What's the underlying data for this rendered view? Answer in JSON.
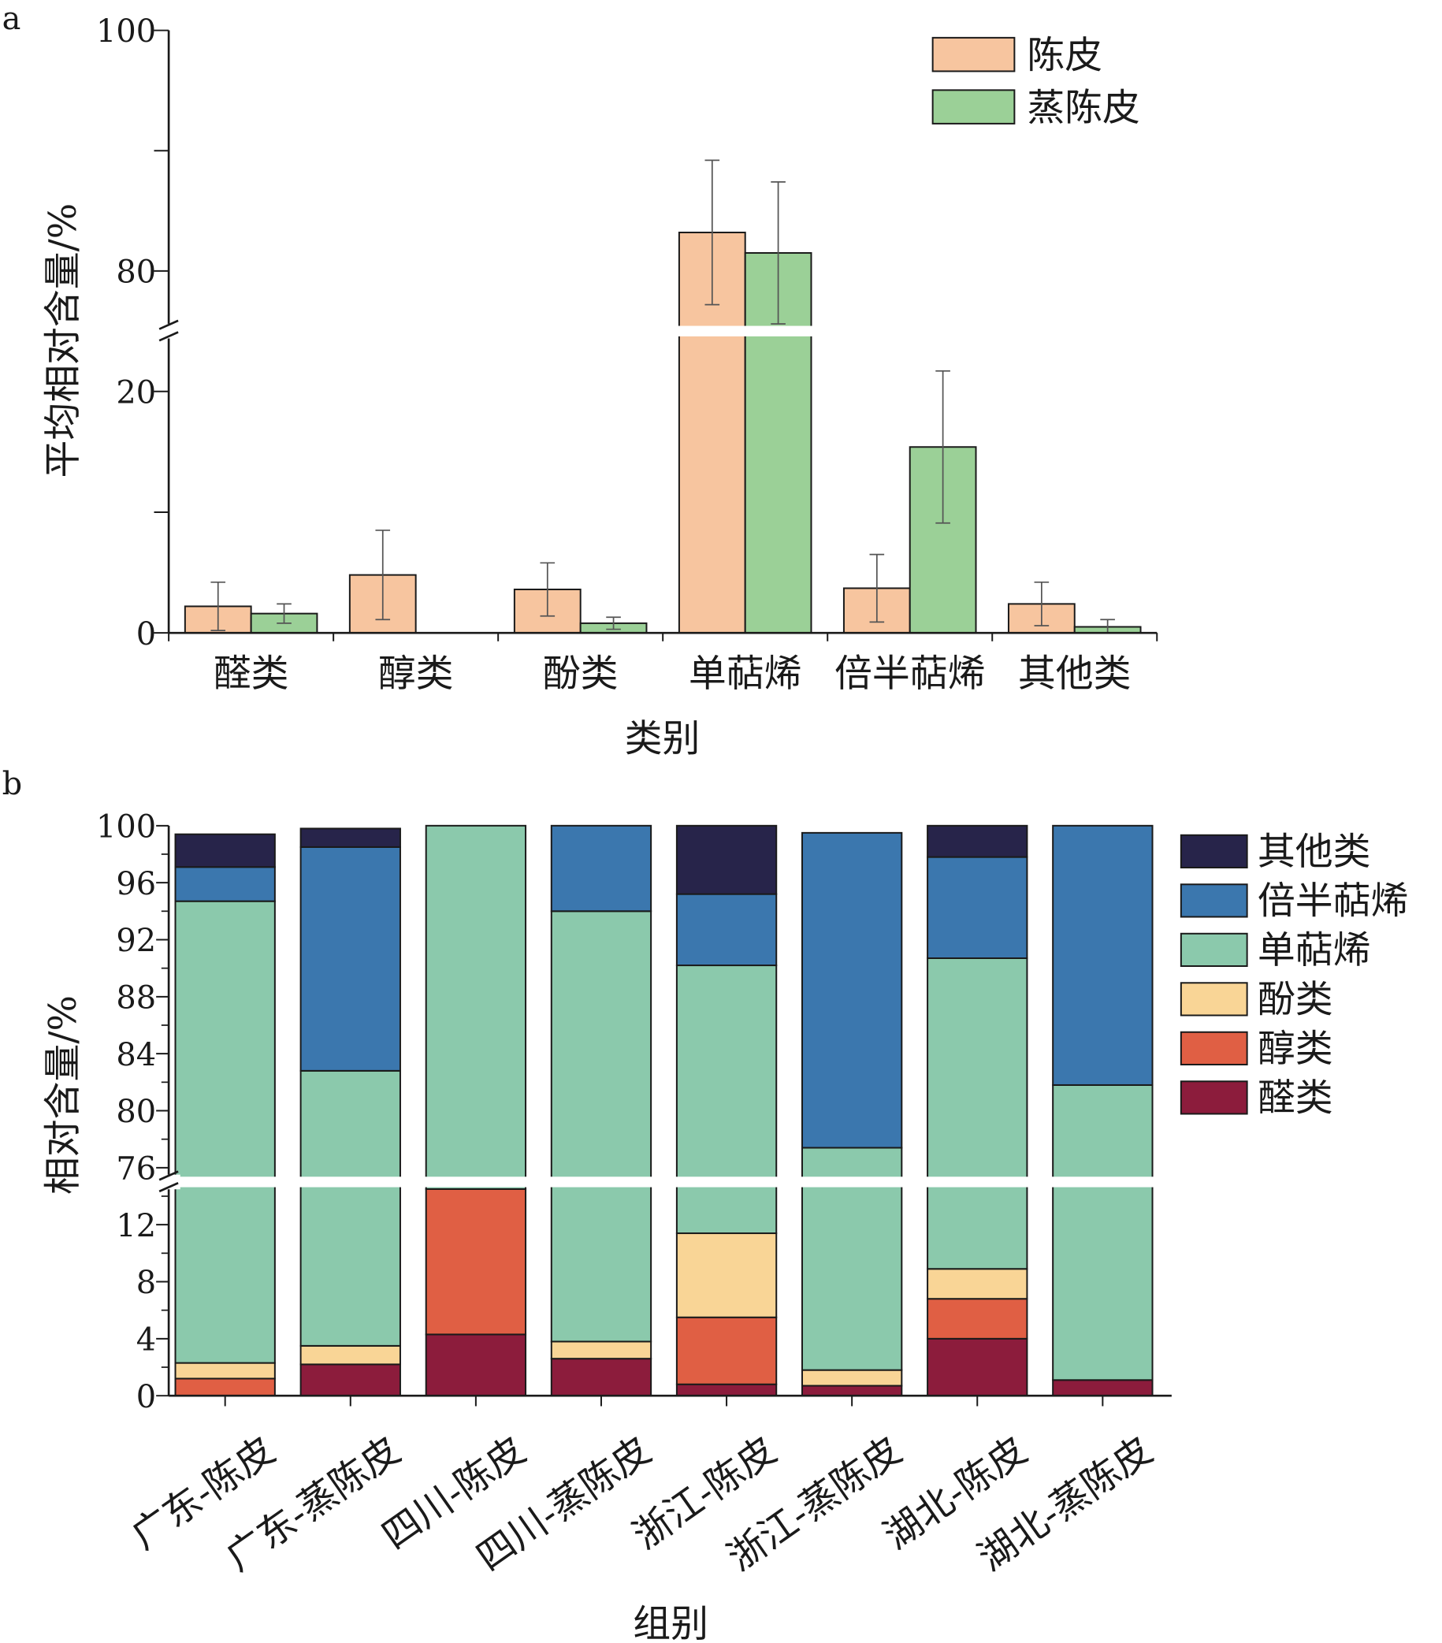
{
  "colors": {
    "chenpi": "#f7c59f",
    "zhengchenpi": "#9bd097",
    "other": "#27244a",
    "sesqui": "#3b77ae",
    "mono": "#8bc9ac",
    "phenol": "#f9d596",
    "alcohol": "#e05f44",
    "aldehyde": "#8c1c3c",
    "axis": "#1a1a1a",
    "error": "#555555"
  },
  "chart_data": [
    {
      "id": "a",
      "panel_label": "a",
      "type": "bar",
      "ylabel": "平均相对含量/%",
      "xlabel": "类别",
      "categories": [
        "醛类",
        "醇类",
        "酚类",
        "单萜烯",
        "倍半萜烯",
        "其他类"
      ],
      "series": [
        {
          "name": "陈皮",
          "color_key": "chenpi",
          "values": [
            2.2,
            4.8,
            3.6,
            83.2,
            3.7,
            2.4
          ],
          "errors": [
            2.0,
            3.7,
            2.2,
            6.0,
            2.8,
            1.8
          ]
        },
        {
          "name": "蒸陈皮",
          "color_key": "zhengchenpi",
          "values": [
            1.6,
            0,
            0.8,
            81.5,
            15.4,
            0.5
          ],
          "errors": [
            0.8,
            0,
            0.5,
            5.9,
            6.3,
            0.6
          ]
        }
      ],
      "y_axis_break": {
        "lower": [
          0,
          25
        ],
        "upper": [
          75,
          100
        ]
      },
      "y_ticks": [
        0,
        20,
        80,
        100
      ],
      "legend": [
        "陈皮",
        "蒸陈皮"
      ],
      "legend_position": "top-right"
    },
    {
      "id": "b",
      "panel_label": "b",
      "type": "bar",
      "stacked": true,
      "ylabel": "相对含量/%",
      "xlabel": "组别",
      "categories": [
        "广东-陈皮",
        "广东-蒸陈皮",
        "四川-陈皮",
        "四川-蒸陈皮",
        "浙江-陈皮",
        "浙江-蒸陈皮",
        "湖北-陈皮",
        "湖北-蒸陈皮"
      ],
      "series": [
        {
          "name": "醛类",
          "color_key": "aldehyde",
          "values": [
            0,
            2.2,
            4.3,
            2.6,
            0.8,
            0.7,
            4.0,
            1.1
          ]
        },
        {
          "name": "醇类",
          "color_key": "alcohol",
          "values": [
            1.2,
            0,
            10.2,
            0,
            4.7,
            0,
            2.8,
            0
          ]
        },
        {
          "name": "酚类",
          "color_key": "phenol",
          "values": [
            1.1,
            1.3,
            0,
            1.2,
            5.9,
            1.1,
            2.1,
            0
          ]
        },
        {
          "name": "单萜烯",
          "color_key": "mono",
          "values": [
            92.4,
            79.3,
            85.5,
            90.2,
            78.8,
            75.6,
            81.8,
            80.7
          ]
        },
        {
          "name": "倍半萜烯",
          "color_key": "sesqui",
          "values": [
            2.4,
            15.7,
            0,
            6.0,
            5.0,
            22.1,
            7.1,
            18.2
          ]
        },
        {
          "name": "其他类",
          "color_key": "other",
          "values": [
            2.3,
            1.3,
            0,
            0,
            4.8,
            0,
            2.2,
            0
          ]
        }
      ],
      "y_axis_break": {
        "lower": [
          0,
          15
        ],
        "upper": [
          75,
          100
        ]
      },
      "y_ticks_lower": [
        0,
        4,
        8,
        12
      ],
      "y_ticks_upper": [
        76,
        80,
        84,
        88,
        92,
        96,
        100
      ],
      "legend": [
        "其他类",
        "倍半萜烯",
        "单萜烯",
        "酚类",
        "醇类",
        "醛类"
      ],
      "legend_position": "right"
    }
  ]
}
